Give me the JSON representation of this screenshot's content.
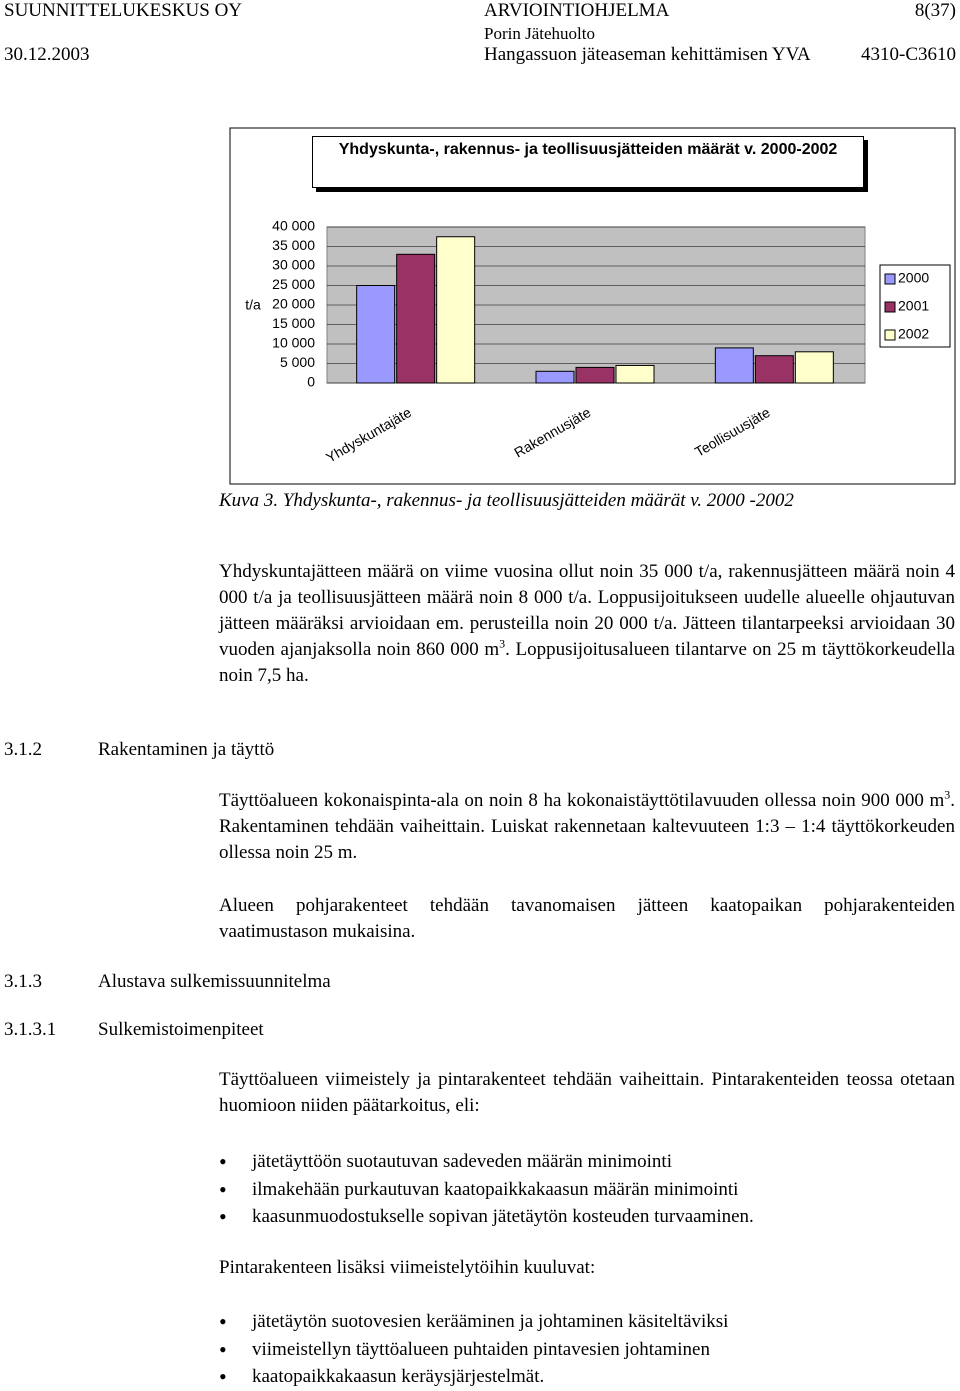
{
  "header": {
    "company": "SUUNNITTELUKESKUS OY",
    "document": "ARVIOINTIOHJELMA",
    "page": "8(37)",
    "client": "Porin Jätehuolto",
    "date": "30.12.2003",
    "project": "Hangassuon jäteaseman kehittämisen YVA",
    "code": "4310-C3610"
  },
  "chart_data": {
    "type": "bar",
    "title": "Yhdyskunta-, rakennus- ja teollisuusjätteiden määrät v. 2000-2002",
    "y_label": "t/a",
    "categories": [
      "Yhdyskuntajäte",
      "Rakennusjäte",
      "Teollisuusjäte"
    ],
    "series": [
      {
        "name": "2000",
        "color": "#9999ff",
        "values": [
          25000,
          3000,
          9000
        ]
      },
      {
        "name": "2001",
        "color": "#993366",
        "values": [
          33000,
          4000,
          7000
        ]
      },
      {
        "name": "2002",
        "color": "#ffffcc",
        "values": [
          37500,
          4500,
          8000
        ]
      }
    ],
    "ylim": [
      0,
      40000
    ],
    "yticks": [
      0,
      {
        "value": 5000,
        "label": "5 000"
      },
      {
        "value": 10000,
        "label": "10 000"
      },
      {
        "value": 15000,
        "label": "15 000"
      },
      {
        "value": 20000,
        "label": "20 000"
      },
      {
        "value": 25000,
        "label": "25 000"
      },
      {
        "value": 30000,
        "label": "30 000"
      },
      {
        "value": 35000,
        "label": "35 000"
      },
      {
        "value": 40000,
        "label": "40 000"
      }
    ],
    "grid": true,
    "legend": "right"
  },
  "caption": "Kuva 3. Yhdyskunta-, rakennus- ja teollisuusjätteiden määrät v. 2000 -2002",
  "paragraph_1": [
    "Yhdyskuntajätteen määrä on viime vuosina ollut noin 35 000 t/a, rakennusjätteen määrä noin 4 000 t/a ja teollisuusjätteen määrä noin 8 000 t/a. Loppusijoitukseen uudelle alueelle ohjautuvan jätteen määräksi arvioidaan em. perusteilla noin 20 000 t/a. Jätteen tilantarpeeksi arvioidaan 30 vuoden ajanjaksolla noin 860 000 m",
    "3",
    ". Loppusijoitusalueen tilantarve on 25 m täyttökorkeudella noin 7,5 ha."
  ],
  "heading_1": {
    "number": "3.1.2",
    "title": "Rakentaminen ja täyttö"
  },
  "paragraph_2": [
    "Täyttöalueen kokonaispinta-ala on noin 8 ha kokonaistäyttötilavuuden ollessa noin 900 000 m",
    "3",
    ". Rakentaminen tehdään vaiheittain. Luiskat rakennetaan kaltevuuteen 1:3 – 1:4 täyttökorkeuden ollessa noin 25 m."
  ],
  "paragraph_3": "Alueen pohjarakenteet tehdään tavanomaisen jätteen kaatopaikan pohjarakenteiden vaatimustason mukaisina.",
  "heading_2": {
    "number": "3.1.3",
    "title": "Alustava sulkemissuunnitelma"
  },
  "heading_3": {
    "number": "3.1.3.1",
    "title": "Sulkemistoimenpiteet"
  },
  "paragraph_4": "Täyttöalueen viimeistely ja pintarakenteet tehdään vaiheittain. Pintarakenteiden teossa otetaan huomioon niiden päätarkoitus, eli:",
  "bullets_1": [
    "jätetäyttöön suotautuvan sadeveden määrän minimointi",
    "ilmakehään purkautuvan kaatopaikkakaasun määrän minimointi",
    "kaasunmuodostukselle sopivan jätetäytön kosteuden turvaaminen."
  ],
  "paragraph_5": "Pintarakenteen lisäksi viimeistelytöihin kuuluvat:",
  "bullets_2": [
    "jätetäytön suotovesien kerääminen ja johtaminen käsiteltäviksi",
    "viimeistellyn täyttöalueen puhtaiden pintavesien johtaminen",
    "kaatopaikkakaasun keräysjärjestelmät."
  ]
}
